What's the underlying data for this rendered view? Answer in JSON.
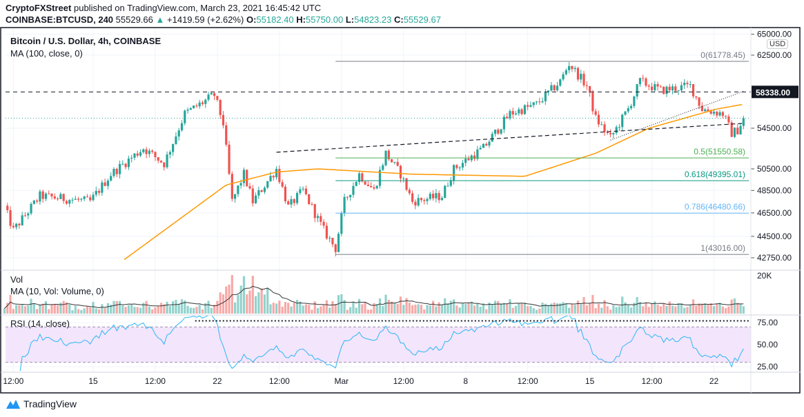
{
  "header": {
    "publisher": "CryptoFXStreet",
    "published_text": "published on TradingView.com, March 23, 2021 16:45:42 UTC",
    "symbol": "COINBASE:BTCUSD, 240",
    "last": "55529.66",
    "change": "+1419.59 (+2.62%)",
    "o_label": "O:",
    "o": "55182.40",
    "h_label": "H:",
    "h": "55750.00",
    "l_label": "L:",
    "l": "54823.23",
    "c_label": "C:",
    "c": "55529.67"
  },
  "legend": {
    "title": "Bitcoin / U.S. Dollar, 4h, COINBASE",
    "ma": "MA (100, close, 0)",
    "vol": "Vol",
    "vol_ma": "MA (10, Vol: Volume, 0)",
    "rsi": "RSI (14, close)"
  },
  "currency": "USD",
  "footer": {
    "brand": "TradingView"
  },
  "colors": {
    "up": "#26a69a",
    "down": "#ef5350",
    "ma": "#ff9800",
    "rsi": "#29b6f6",
    "rsi_band": "#f3e5fc",
    "vol_ma": "#333333"
  },
  "chart_data": {
    "type": "candlestick",
    "symbol": "BTCUSD",
    "interval": "4h",
    "y_scale": "log",
    "ylim": [
      42500,
      65000
    ],
    "y_ticks": [
      "65000.00",
      "62500.00",
      "54500.00",
      "50500.00",
      "48500.00",
      "46500.00",
      "44500.00",
      "42750.00"
    ],
    "highlight_price": {
      "label": "58338.00",
      "value": 58338
    },
    "current_price": 55529.66,
    "x_ticks": [
      {
        "label": "12:00",
        "t": "2021-02-10T12:00Z"
      },
      {
        "label": "15",
        "t": "2021-02-15T00:00Z"
      },
      {
        "label": "12:00",
        "t": "2021-02-18T12:00Z"
      },
      {
        "label": "22",
        "t": "2021-02-22T00:00Z"
      },
      {
        "label": "12:00",
        "t": "2021-02-25T12:00Z"
      },
      {
        "label": "Mar",
        "t": "2021-03-01T00:00Z"
      },
      {
        "label": "12:00",
        "t": "2021-03-04T12:00Z"
      },
      {
        "label": "8",
        "t": "2021-03-08T00:00Z"
      },
      {
        "label": "12:00",
        "t": "2021-03-11T12:00Z"
      },
      {
        "label": "15",
        "t": "2021-03-15T00:00Z"
      },
      {
        "label": "12:00",
        "t": "2021-03-18T12:00Z"
      },
      {
        "label": "22",
        "t": "2021-03-22T00:00Z"
      }
    ],
    "price_path": [
      [
        "2021-02-10T00:00Z",
        47000
      ],
      [
        "2021-02-10T12:00Z",
        45000
      ],
      [
        "2021-02-12T00:00Z",
        48000
      ],
      [
        "2021-02-14T20:00Z",
        47500
      ],
      [
        "2021-02-16T00:00Z",
        50000
      ],
      [
        "2021-02-17T20:00Z",
        52500
      ],
      [
        "2021-02-19T00:00Z",
        51000
      ],
      [
        "2021-02-20T04:00Z",
        56000
      ],
      [
        "2021-02-21T20:00Z",
        58000
      ],
      [
        "2021-02-22T08:00Z",
        55000
      ],
      [
        "2021-02-22T20:00Z",
        47500
      ],
      [
        "2021-02-23T12:00Z",
        50000
      ],
      [
        "2021-02-24T00:00Z",
        47500
      ],
      [
        "2021-02-25T08:00Z",
        50500
      ],
      [
        "2021-02-26T00:00Z",
        47000
      ],
      [
        "2021-02-26T20:00Z",
        48500
      ],
      [
        "2021-02-28T00:00Z",
        45000
      ],
      [
        "2021-02-28T16:00Z",
        43500
      ],
      [
        "2021-03-01T04:00Z",
        47500
      ],
      [
        "2021-03-02T00:00Z",
        50000
      ],
      [
        "2021-03-02T20:00Z",
        48500
      ],
      [
        "2021-03-03T12:00Z",
        52000
      ],
      [
        "2021-03-04T08:00Z",
        50000
      ],
      [
        "2021-03-05T00:00Z",
        47500
      ],
      [
        "2021-03-06T16:00Z",
        48000
      ],
      [
        "2021-03-07T08:00Z",
        50500
      ],
      [
        "2021-03-09T00:00Z",
        52500
      ],
      [
        "2021-03-10T12:00Z",
        56000
      ],
      [
        "2021-03-12T00:00Z",
        57000
      ],
      [
        "2021-03-13T08:00Z",
        59500
      ],
      [
        "2021-03-13T20:00Z",
        61500
      ],
      [
        "2021-03-14T20:00Z",
        59000
      ],
      [
        "2021-03-15T08:00Z",
        55500
      ],
      [
        "2021-03-16T04:00Z",
        53500
      ],
      [
        "2021-03-17T04:00Z",
        56500
      ],
      [
        "2021-03-17T20:00Z",
        59500
      ],
      [
        "2021-03-19T00:00Z",
        58500
      ],
      [
        "2021-03-20T16:00Z",
        59000
      ],
      [
        "2021-03-21T08:00Z",
        56500
      ],
      [
        "2021-03-22T12:00Z",
        56000
      ],
      [
        "2021-03-23T00:00Z",
        54000
      ],
      [
        "2021-03-23T08:00Z",
        54300
      ],
      [
        "2021-03-23T16:00Z",
        55530
      ]
    ],
    "ma100_path": [
      [
        "2021-02-16T18:00Z",
        42600
      ],
      [
        "2021-02-22T12:00Z",
        49000
      ],
      [
        "2021-02-25T08:00Z",
        50200
      ],
      [
        "2021-02-27T16:00Z",
        50500
      ],
      [
        "2021-03-05T00:00Z",
        50000
      ],
      [
        "2021-03-11T08:00Z",
        49800
      ],
      [
        "2021-03-15T08:00Z",
        52000
      ],
      [
        "2021-03-18T08:00Z",
        54500
      ],
      [
        "2021-03-22T04:00Z",
        56500
      ],
      [
        "2021-03-23T16:00Z",
        57000
      ]
    ],
    "fibonacci": [
      {
        "label": "0(61778.45)",
        "value": 61778.45,
        "color": "#787b86"
      },
      {
        "label": "0.5(51550.58)",
        "value": 51550.58,
        "color": "#4caf50"
      },
      {
        "label": "0.618(49395.01)",
        "value": 49395.01,
        "color": "#089981"
      },
      {
        "label": "0.786(46480.66)",
        "value": 46480.66,
        "color": "#64b5f6"
      },
      {
        "label": "1(43016.00)",
        "value": 43016.0,
        "color": "#787b86"
      }
    ],
    "fib_start": "2021-02-28T16:00Z",
    "trendlines": [
      {
        "style": "dashed",
        "from": [
          "2021-02-25T08:00Z",
          52100
        ],
        "to": [
          "2021-03-23T16:00Z",
          55000
        ]
      },
      {
        "style": "dotted",
        "from": [
          "2021-03-16T04:00Z",
          53300
        ],
        "to": [
          "2021-03-23T16:00Z",
          58400
        ]
      }
    ],
    "volume_axis": [
      "20K"
    ],
    "rsi_ticks": [
      "75.00",
      "50.00",
      "25.00"
    ],
    "rsi_band": [
      30,
      70
    ],
    "rsi_overbought_marker": 77
  }
}
